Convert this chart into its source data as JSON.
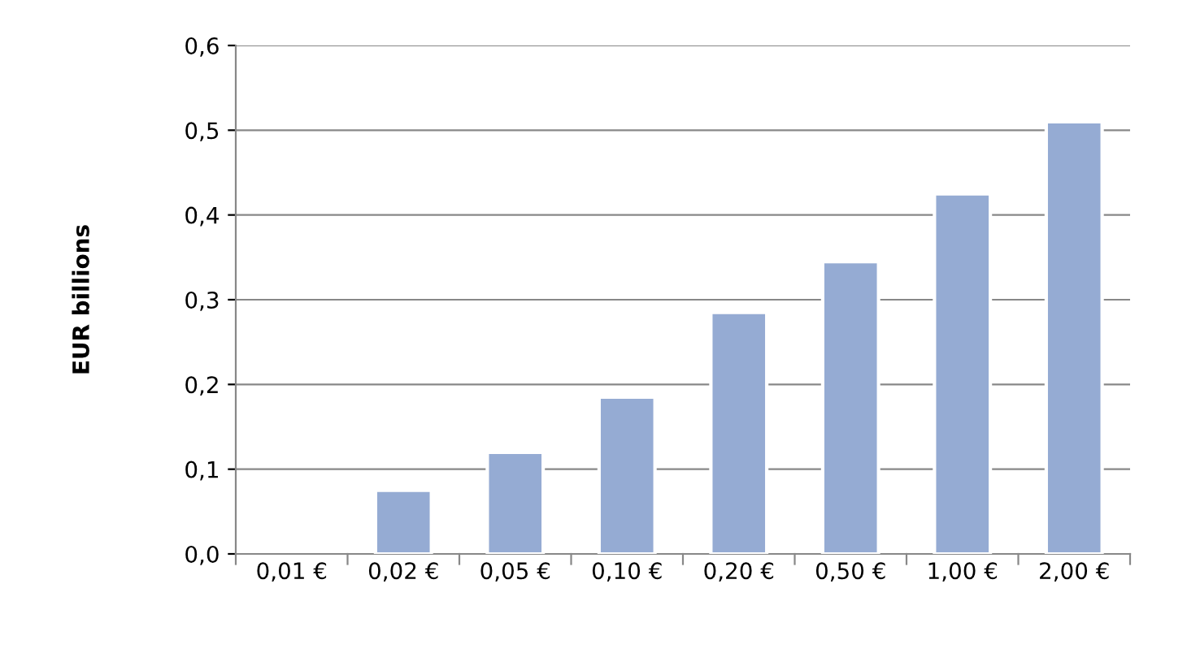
{
  "chart_data": {
    "type": "bar",
    "ylabel": "EUR billions",
    "categories": [
      "0,01 €",
      "0,02 €",
      "0,05 €",
      "0,10 €",
      "0,20 €",
      "0,50 €",
      "1,00 €",
      "2,00 €"
    ],
    "values": [
      null,
      0.075,
      0.12,
      0.185,
      0.285,
      0.345,
      0.425,
      0.51
    ],
    "color": "#95abd3",
    "ylim": [
      0,
      0.6
    ],
    "yticks": [
      {
        "value": 0,
        "label": "0,0"
      },
      {
        "value": 0.1,
        "label": "0,1"
      },
      {
        "value": 0.2,
        "label": "0,2"
      },
      {
        "value": 0.3,
        "label": "0,3"
      },
      {
        "value": 0.4,
        "label": "0,4"
      },
      {
        "value": 0.5,
        "label": "0,5"
      },
      {
        "value": 0.6,
        "label": "0,6"
      }
    ],
    "grid": "y"
  }
}
